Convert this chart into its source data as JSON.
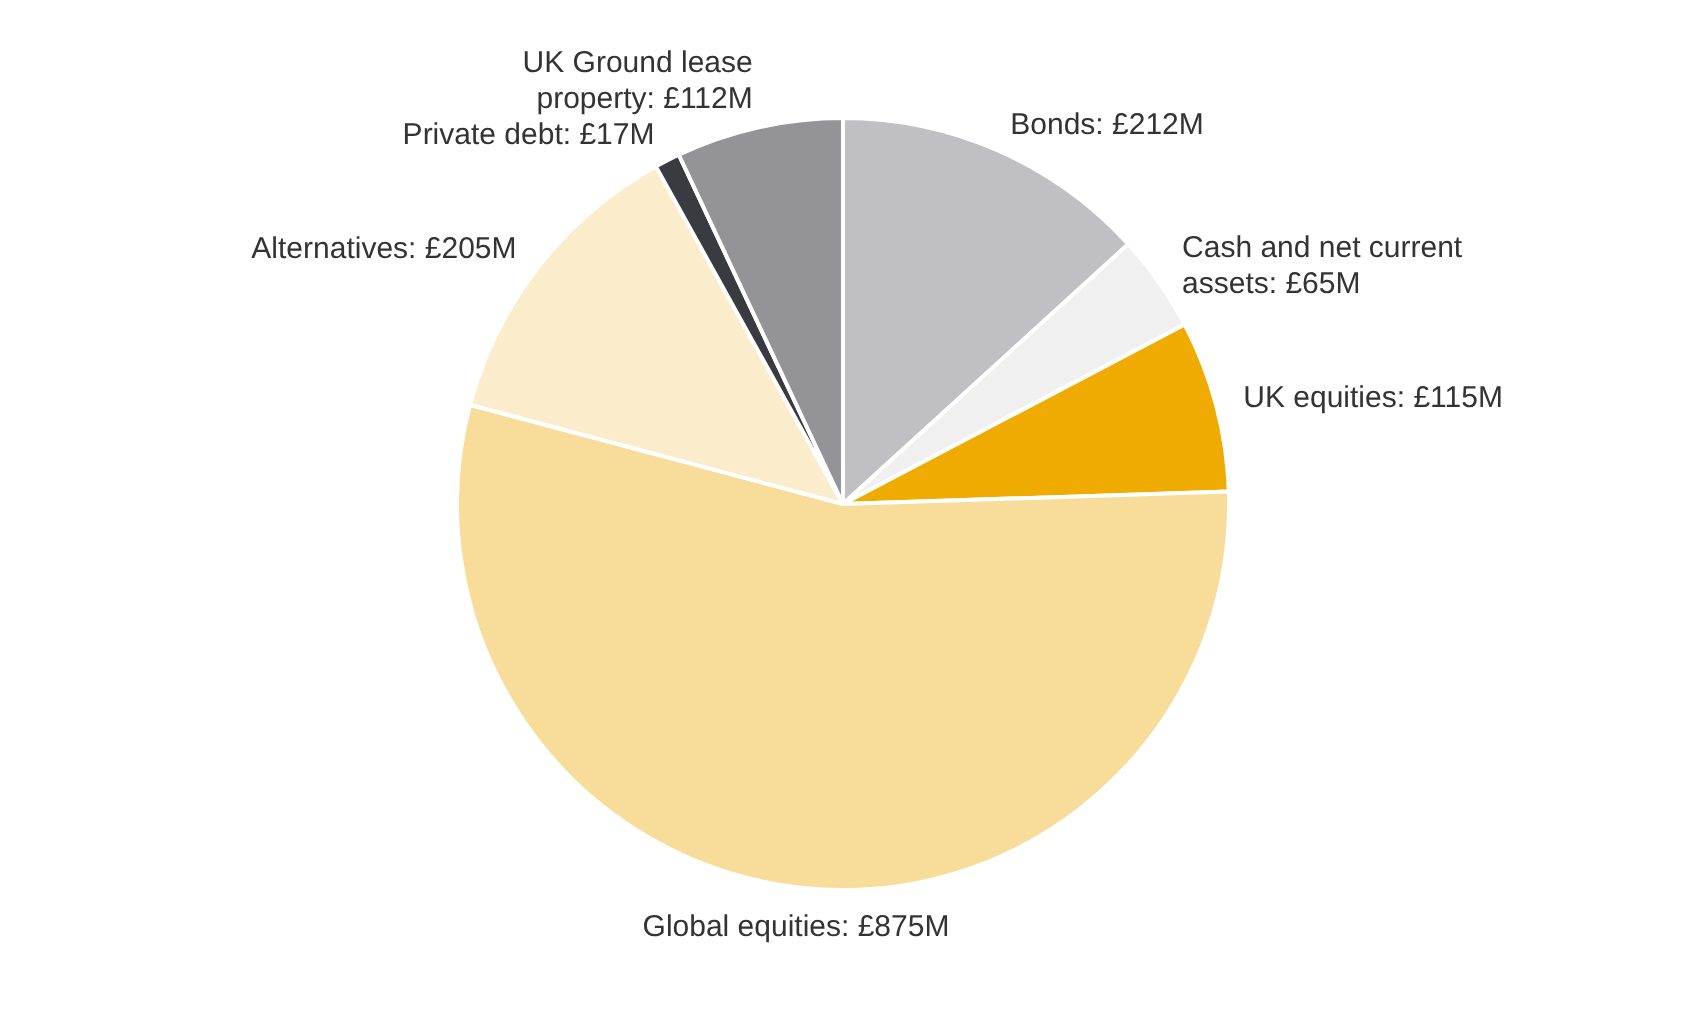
{
  "chart_data": {
    "type": "pie",
    "categories": [
      "Bonds",
      "Cash and net current assets",
      "UK equities",
      "Global equities",
      "Alternatives",
      "Private debt",
      "UK Ground lease property"
    ],
    "values": [
      212,
      65,
      115,
      875,
      205,
      17,
      112
    ],
    "value_labels": [
      "£212M",
      "£65M",
      "£115M",
      "£875M",
      "£205M",
      "£17M",
      "£112M"
    ],
    "colors": [
      "#c0c0c4",
      "#f0f0f0",
      "#f0ab00",
      "#f8dc9a",
      "#fbeccb",
      "#3a3b40",
      "#939398"
    ],
    "legend": false
  }
}
